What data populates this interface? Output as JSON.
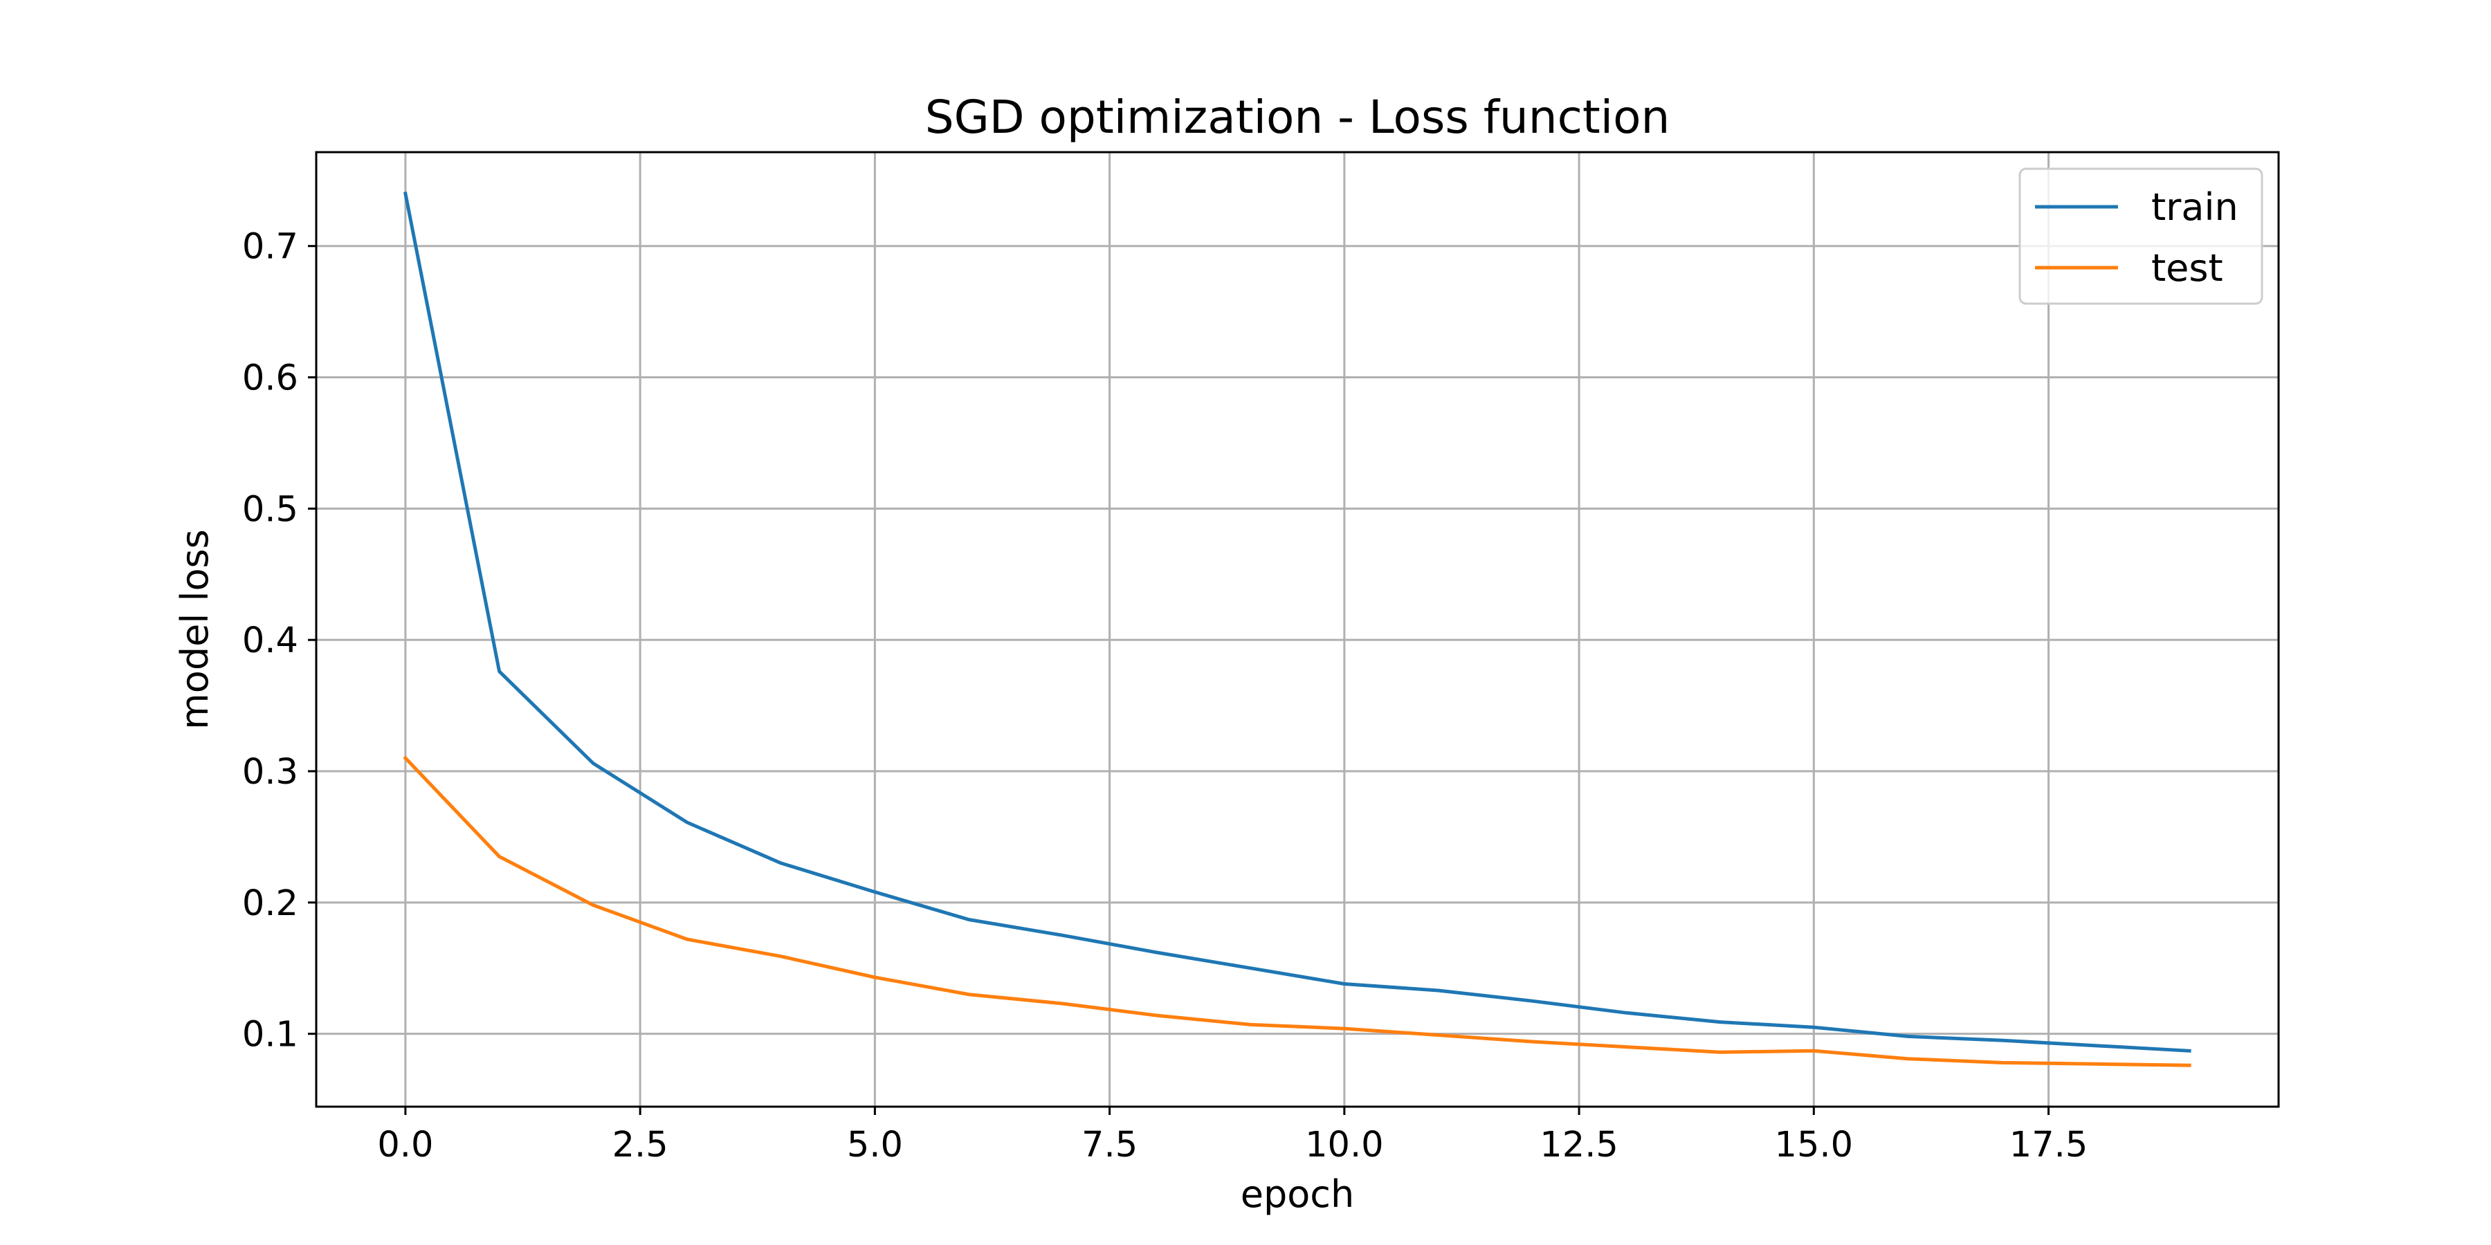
{
  "chart_data": {
    "type": "line",
    "title": "SGD optimization - Loss function",
    "xlabel": "epoch",
    "ylabel": "model loss",
    "xlim": [
      -0.95,
      19.95
    ],
    "ylim": [
      0.0445,
      0.7715
    ],
    "xticks": [
      0.0,
      2.5,
      5.0,
      7.5,
      10.0,
      12.5,
      15.0,
      17.5
    ],
    "xtick_labels": [
      "0.0",
      "2.5",
      "5.0",
      "7.5",
      "10.0",
      "12.5",
      "15.0",
      "17.5"
    ],
    "yticks": [
      0.1,
      0.2,
      0.3,
      0.4,
      0.5,
      0.6,
      0.7
    ],
    "ytick_labels": [
      "0.1",
      "0.2",
      "0.3",
      "0.4",
      "0.5",
      "0.6",
      "0.7"
    ],
    "grid": true,
    "legend_position": "top-right",
    "x": [
      0,
      1,
      2,
      3,
      4,
      5,
      6,
      7,
      8,
      9,
      10,
      11,
      12,
      13,
      14,
      15,
      16,
      17,
      18,
      19
    ],
    "series": [
      {
        "name": "train",
        "color": "#1f77b4",
        "values": [
          0.74,
          0.376,
          0.306,
          0.261,
          0.23,
          0.208,
          0.187,
          0.175,
          0.162,
          0.15,
          0.138,
          0.133,
          0.125,
          0.116,
          0.109,
          0.105,
          0.098,
          0.095,
          0.091,
          0.087
        ]
      },
      {
        "name": "test",
        "color": "#ff7f0e",
        "values": [
          0.31,
          0.235,
          0.198,
          0.172,
          0.159,
          0.143,
          0.13,
          0.123,
          0.114,
          0.107,
          0.104,
          0.099,
          0.094,
          0.09,
          0.086,
          0.087,
          0.081,
          0.078,
          0.077,
          0.076
        ]
      }
    ]
  }
}
